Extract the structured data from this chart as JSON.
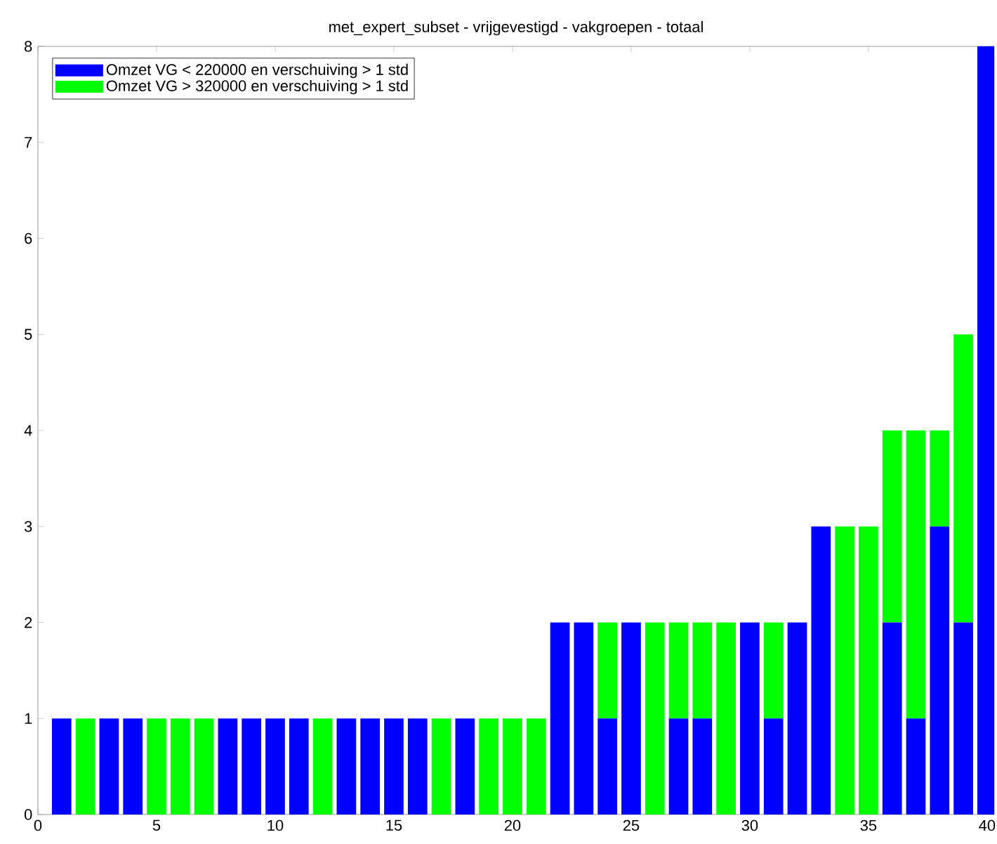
{
  "chart_data": {
    "type": "bar",
    "title": "met_expert_subset - vrijgevestigd - vakgroepen - totaal",
    "stacked": true,
    "x": [
      1,
      2,
      3,
      4,
      5,
      6,
      7,
      8,
      9,
      10,
      11,
      12,
      13,
      14,
      15,
      16,
      17,
      18,
      19,
      20,
      21,
      22,
      23,
      24,
      25,
      26,
      27,
      28,
      29,
      30,
      31,
      32,
      33,
      34,
      35,
      36,
      37,
      38,
      39,
      40
    ],
    "series": [
      {
        "name": "Omzet VG < 220000 en verschuiving > 1 std",
        "color": "#0000ff",
        "values": [
          1,
          0,
          1,
          1,
          0,
          0,
          0,
          1,
          1,
          1,
          1,
          0,
          1,
          1,
          1,
          1,
          0,
          1,
          0,
          0,
          0,
          2,
          2,
          1,
          2,
          0,
          1,
          1,
          0,
          2,
          1,
          2,
          3,
          0,
          0,
          2,
          1,
          3,
          2,
          8
        ]
      },
      {
        "name": "Omzet VG > 320000 en verschuiving > 1 std",
        "color": "#00ff00",
        "values": [
          0,
          1,
          0,
          0,
          1,
          1,
          1,
          0,
          0,
          0,
          0,
          1,
          0,
          0,
          0,
          0,
          1,
          0,
          1,
          1,
          1,
          0,
          0,
          1,
          0,
          2,
          1,
          1,
          2,
          0,
          1,
          0,
          0,
          3,
          3,
          2,
          3,
          1,
          3,
          0
        ]
      }
    ],
    "xlim": [
      0,
      40.3
    ],
    "ylim": [
      0,
      8
    ],
    "xticks": [
      0,
      5,
      10,
      15,
      20,
      25,
      30,
      35,
      40
    ],
    "yticks": [
      0,
      1,
      2,
      3,
      4,
      5,
      6,
      7,
      8
    ],
    "grid": false,
    "legend": "top left"
  }
}
